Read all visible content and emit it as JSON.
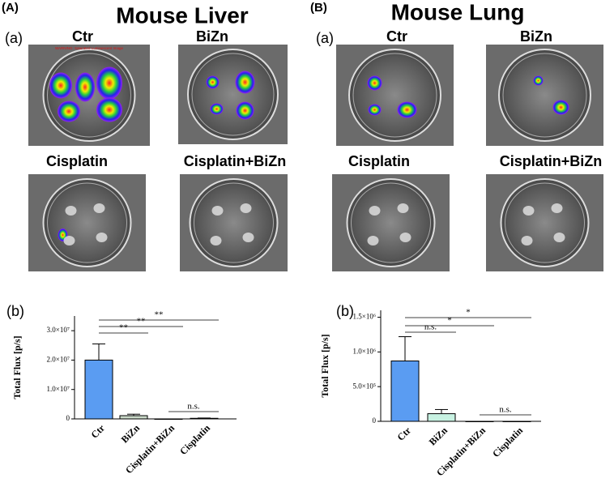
{
  "panels": [
    {
      "label": "(A)",
      "title": "Mouse Liver",
      "image_label": "(a)",
      "chart_label": "(b)",
      "images": [
        {
          "label": "Ctr",
          "note": "WARNING: Saturated Luminescent Image"
        },
        {
          "label": "BiZn"
        },
        {
          "label": "Cisplatin"
        },
        {
          "label": "Cisplatin+BiZn"
        }
      ]
    },
    {
      "label": "(B)",
      "title": "Mouse Lung",
      "image_label": "(a)",
      "chart_label": "(b)",
      "images": [
        {
          "label": "Ctr"
        },
        {
          "label": "BiZn"
        },
        {
          "label": "Cisplatin"
        },
        {
          "label": "Cisplatin+BiZn"
        }
      ]
    }
  ],
  "chart_data": [
    {
      "type": "bar",
      "y_label": "Total Flux [p/s]",
      "categories": [
        "Ctr",
        "BiZn",
        "Cisplatin+BiZn",
        "Cisplatin"
      ],
      "values": [
        20000000,
        1100000,
        0,
        200000
      ],
      "errors": [
        5500000,
        500000,
        0,
        100000
      ],
      "colors": [
        "#5a9cf2",
        "#c9d8c8",
        "#c9d8c8",
        "#c9d8c8"
      ],
      "ylim": [
        0,
        35000000
      ],
      "yticks": [
        0,
        {
          "value": 10000000,
          "label": "1.0×10⁷"
        },
        {
          "value": 20000000,
          "label": "2.0×10⁷"
        },
        {
          "value": 30000000,
          "label": "3.0×10⁷"
        }
      ],
      "significance": [
        "**",
        "**",
        "**",
        "n.s."
      ]
    },
    {
      "type": "bar",
      "y_label": "Total Flux [p/s]",
      "categories": [
        "Ctr",
        "BiZn",
        "Cisplatin+BiZn",
        "Cisplatin"
      ],
      "values": [
        870000,
        110000,
        0,
        0
      ],
      "errors": [
        350000,
        60000,
        0,
        0
      ],
      "colors": [
        "#5a9cf2",
        "#c8f2e2",
        "#c8f2e2",
        "#c8f2e2"
      ],
      "ylim": [
        0,
        1600000
      ],
      "yticks": [
        0,
        {
          "value": 500000,
          "label": "5.0×10⁵"
        },
        {
          "value": 1000000,
          "label": "1.0×10⁶"
        },
        {
          "value": 1500000,
          "label": "1.5×10⁶"
        }
      ],
      "significance": [
        "n.s.",
        "*",
        "*",
        "n.s."
      ]
    }
  ]
}
